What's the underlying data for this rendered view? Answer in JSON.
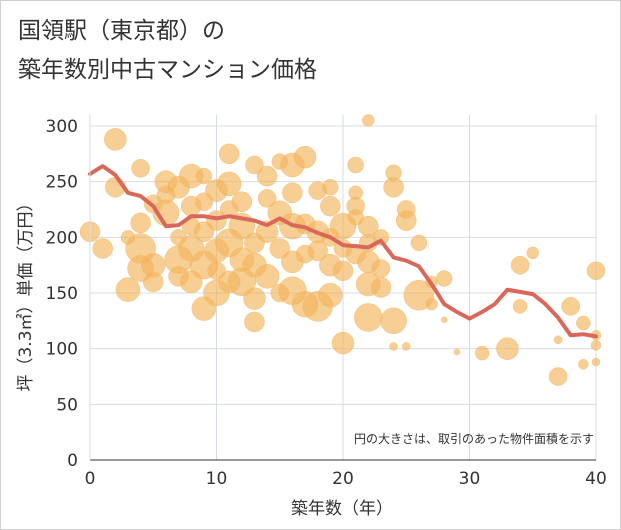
{
  "title_line1": "国領駅（東京都）の",
  "title_line2": "築年数別中古マンション価格",
  "chart_data": {
    "type": "scatter",
    "xlabel": "築年数（年）",
    "ylabel": "坪（3.3㎡）単価（万円）",
    "xlim": [
      0,
      40
    ],
    "ylim": [
      0,
      310
    ],
    "xticks": [
      0,
      10,
      20,
      30,
      40
    ],
    "yticks": [
      0,
      50,
      100,
      150,
      200,
      250,
      300
    ],
    "note": "円の大きさは、取引のあった物件面積を示す",
    "grid": true,
    "bubble_color": "#f2b35a",
    "line_color": "#d9685a",
    "bubbles": [
      [
        0,
        205,
        10
      ],
      [
        1,
        190,
        10
      ],
      [
        2,
        288,
        11
      ],
      [
        2,
        245,
        10
      ],
      [
        3,
        200,
        7
      ],
      [
        3,
        153,
        12
      ],
      [
        4,
        172,
        13
      ],
      [
        4,
        213,
        10
      ],
      [
        4,
        190,
        15
      ],
      [
        4,
        262,
        9
      ],
      [
        5,
        175,
        12
      ],
      [
        5,
        230,
        9
      ],
      [
        5,
        160,
        10
      ],
      [
        6,
        250,
        11
      ],
      [
        6,
        222,
        13
      ],
      [
        6,
        238,
        9
      ],
      [
        7,
        200,
        8
      ],
      [
        7,
        180,
        14
      ],
      [
        7,
        165,
        10
      ],
      [
        7,
        245,
        11
      ],
      [
        8,
        255,
        12
      ],
      [
        8,
        228,
        10
      ],
      [
        8,
        210,
        9
      ],
      [
        8,
        190,
        13
      ],
      [
        8,
        160,
        11
      ],
      [
        9,
        136,
        12
      ],
      [
        9,
        175,
        14
      ],
      [
        9,
        205,
        10
      ],
      [
        9,
        232,
        9
      ],
      [
        9,
        255,
        8
      ],
      [
        10,
        188,
        12
      ],
      [
        10,
        215,
        10
      ],
      [
        10,
        242,
        11
      ],
      [
        10,
        170,
        9
      ],
      [
        10,
        150,
        13
      ],
      [
        11,
        275,
        10
      ],
      [
        11,
        248,
        12
      ],
      [
        11,
        225,
        9
      ],
      [
        11,
        195,
        14
      ],
      [
        11,
        160,
        11
      ],
      [
        12,
        232,
        10
      ],
      [
        12,
        210,
        13
      ],
      [
        12,
        180,
        12
      ],
      [
        12,
        160,
        14
      ],
      [
        13,
        265,
        9
      ],
      [
        13,
        145,
        11
      ],
      [
        13,
        124,
        10
      ],
      [
        13,
        195,
        10
      ],
      [
        13,
        175,
        12
      ],
      [
        14,
        255,
        10
      ],
      [
        14,
        235,
        9
      ],
      [
        14,
        165,
        12
      ],
      [
        14,
        205,
        11
      ],
      [
        15,
        268,
        8
      ],
      [
        15,
        222,
        12
      ],
      [
        15,
        190,
        10
      ],
      [
        15,
        150,
        9
      ],
      [
        16,
        265,
        12
      ],
      [
        16,
        240,
        10
      ],
      [
        16,
        210,
        13
      ],
      [
        16,
        178,
        11
      ],
      [
        16,
        152,
        14
      ],
      [
        17,
        272,
        11
      ],
      [
        17,
        212,
        10
      ],
      [
        17,
        185,
        9
      ],
      [
        17,
        140,
        13
      ],
      [
        18,
        242,
        9
      ],
      [
        18,
        205,
        11
      ],
      [
        18,
        188,
        10
      ],
      [
        18,
        138,
        15
      ],
      [
        19,
        228,
        10
      ],
      [
        19,
        200,
        9
      ],
      [
        19,
        245,
        8
      ],
      [
        19,
        175,
        11
      ],
      [
        19,
        148,
        12
      ],
      [
        20,
        105,
        11
      ],
      [
        20,
        170,
        10
      ],
      [
        20,
        210,
        13
      ],
      [
        20,
        190,
        9
      ],
      [
        21,
        265,
        8
      ],
      [
        21,
        228,
        9
      ],
      [
        21,
        240,
        7
      ],
      [
        21,
        218,
        8
      ],
      [
        21,
        185,
        10
      ],
      [
        22,
        305,
        6
      ],
      [
        22,
        210,
        10
      ],
      [
        22,
        195,
        9
      ],
      [
        22,
        178,
        11
      ],
      [
        22,
        158,
        12
      ],
      [
        22,
        128,
        14
      ],
      [
        23,
        200,
        8
      ],
      [
        23,
        172,
        9
      ],
      [
        23,
        155,
        10
      ],
      [
        24,
        258,
        8
      ],
      [
        24,
        245,
        10
      ],
      [
        24,
        125,
        13
      ],
      [
        24,
        102,
        4
      ],
      [
        25,
        102,
        4
      ],
      [
        25,
        215,
        10
      ],
      [
        25,
        225,
        9
      ],
      [
        26,
        195,
        8
      ],
      [
        26,
        148,
        15
      ],
      [
        27,
        140,
        6
      ],
      [
        27,
        160,
        6
      ],
      [
        28,
        163,
        8
      ],
      [
        28,
        126,
        3
      ],
      [
        29,
        97,
        3
      ],
      [
        31,
        96,
        7
      ],
      [
        33,
        100,
        11
      ],
      [
        34,
        175,
        9
      ],
      [
        34,
        138,
        7
      ],
      [
        35,
        186,
        6
      ],
      [
        37,
        108,
        4
      ],
      [
        37,
        75,
        9
      ],
      [
        38,
        138,
        9
      ],
      [
        39,
        123,
        7
      ],
      [
        39,
        86,
        5
      ],
      [
        40,
        170,
        9
      ],
      [
        40,
        103,
        5
      ],
      [
        40,
        112,
        5
      ],
      [
        40,
        88,
        4
      ]
    ],
    "line": {
      "x": [
        0,
        1,
        2,
        3,
        4,
        5,
        6,
        7,
        8,
        9,
        10,
        11,
        12,
        13,
        14,
        15,
        16,
        17,
        18,
        19,
        20,
        21,
        22,
        23,
        24,
        25,
        26,
        27,
        28,
        29,
        30,
        31,
        32,
        33,
        34,
        35,
        36,
        37,
        38,
        39,
        40
      ],
      "y": [
        257,
        264,
        256,
        240,
        237,
        228,
        210,
        211,
        219,
        219,
        217,
        219,
        217,
        215,
        211,
        217,
        211,
        209,
        204,
        200,
        193,
        192,
        191,
        197,
        182,
        179,
        174,
        158,
        140,
        133,
        127,
        133,
        140,
        153,
        151,
        149,
        140,
        128,
        112,
        113,
        111
      ]
    }
  }
}
